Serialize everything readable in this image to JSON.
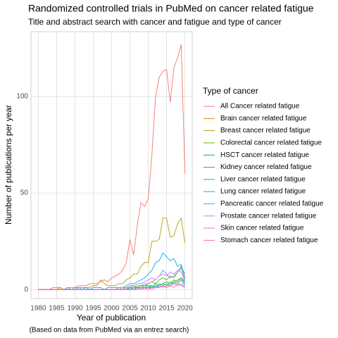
{
  "chart_data": {
    "type": "line",
    "title": "Randomized controlled trials in PubMed on cancer related fatigue",
    "subtitle": "Title and abstract search with cancer and fatigue and type of cancer",
    "x_label": "Year of publication",
    "y_label": "Number of publications per year",
    "caption": "(Based on data from PubMed via an entrez search)",
    "legend_title": "Type of cancer",
    "legend_position": "right",
    "grid": true,
    "x": [
      1980,
      1981,
      1982,
      1983,
      1984,
      1985,
      1986,
      1987,
      1988,
      1989,
      1990,
      1991,
      1992,
      1993,
      1994,
      1995,
      1996,
      1997,
      1998,
      1999,
      2000,
      2001,
      2002,
      2003,
      2004,
      2005,
      2006,
      2007,
      2008,
      2009,
      2010,
      2011,
      2012,
      2013,
      2014,
      2015,
      2016,
      2017,
      2018,
      2019,
      2020
    ],
    "xlim": [
      1978,
      2022
    ],
    "xticks": [
      1980,
      1985,
      1990,
      1995,
      2000,
      2005,
      2010,
      2015,
      2020
    ],
    "ylim": [
      -4.7,
      133.6
    ],
    "yticks": [
      0,
      50,
      100
    ],
    "series": [
      {
        "name": "All Cancer related fatigue",
        "color": "#F8766D",
        "values": [
          0,
          0,
          0,
          0,
          1,
          1,
          1,
          0,
          1,
          1,
          1,
          2,
          2,
          2,
          3,
          3,
          3,
          4,
          5,
          4,
          6,
          7,
          8,
          10,
          14,
          26,
          18,
          33,
          45,
          43,
          47,
          70,
          100,
          110,
          113,
          114,
          97,
          115,
          120,
          127,
          60
        ]
      },
      {
        "name": "Brain cancer related fatigue",
        "color": "#DE8C00",
        "values": [
          0,
          0,
          0,
          0,
          0,
          0,
          0,
          0,
          0,
          0,
          0,
          0,
          0,
          0,
          0,
          0,
          0,
          0,
          0,
          0,
          0,
          0,
          0,
          0,
          0,
          0,
          1,
          0,
          1,
          1,
          1,
          2,
          1,
          2,
          3,
          2,
          4,
          3,
          5,
          6,
          4
        ]
      },
      {
        "name": "Breast cancer related fatigue",
        "color": "#B79F00",
        "values": [
          0,
          0,
          0,
          0,
          0,
          0,
          1,
          0,
          0,
          0,
          1,
          1,
          1,
          1,
          1,
          2,
          2,
          5,
          3,
          2,
          2,
          2,
          3,
          3,
          5,
          6,
          8,
          8,
          12,
          14,
          14,
          25,
          25,
          26,
          37,
          37,
          27,
          28,
          34,
          37,
          24
        ]
      },
      {
        "name": "Colorectal cancer related fatigue",
        "color": "#7CAE00",
        "values": [
          0,
          0,
          0,
          0,
          0,
          0,
          0,
          0,
          0,
          0,
          0,
          0,
          0,
          0,
          0,
          0,
          0,
          0,
          0,
          0,
          0,
          0,
          1,
          0,
          1,
          1,
          2,
          1,
          2,
          2,
          3,
          4,
          3,
          5,
          6,
          5,
          7,
          6,
          9,
          12,
          8
        ]
      },
      {
        "name": "HSCT cancer related fatigue",
        "color": "#00BA38",
        "values": [
          0,
          0,
          0,
          0,
          0,
          0,
          0,
          0,
          0,
          0,
          0,
          0,
          0,
          0,
          0,
          0,
          0,
          0,
          0,
          0,
          0,
          0,
          0,
          0,
          1,
          0,
          1,
          1,
          1,
          2,
          2,
          1,
          3,
          2,
          3,
          4,
          3,
          5,
          4,
          6,
          3
        ]
      },
      {
        "name": "Kidney cancer related fatigue",
        "color": "#00C08B",
        "values": [
          0,
          0,
          0,
          0,
          0,
          0,
          0,
          0,
          0,
          0,
          0,
          0,
          0,
          0,
          0,
          0,
          0,
          0,
          0,
          0,
          0,
          0,
          0,
          0,
          0,
          0,
          0,
          1,
          0,
          1,
          1,
          1,
          2,
          1,
          2,
          1,
          2,
          3,
          2,
          3,
          1
        ]
      },
      {
        "name": "Liver cancer related fatigue",
        "color": "#00BFC4",
        "values": [
          0,
          0,
          0,
          0,
          0,
          0,
          0,
          0,
          0,
          0,
          0,
          0,
          0,
          0,
          0,
          0,
          0,
          0,
          0,
          0,
          0,
          0,
          0,
          0,
          0,
          1,
          0,
          1,
          1,
          1,
          2,
          2,
          1,
          3,
          2,
          3,
          2,
          4,
          3,
          5,
          2
        ]
      },
      {
        "name": "Lung cancer related fatigue",
        "color": "#00B4F0",
        "values": [
          0,
          0,
          0,
          0,
          0,
          0,
          0,
          0,
          1,
          0,
          0,
          1,
          0,
          1,
          0,
          1,
          1,
          1,
          0,
          1,
          1,
          1,
          1,
          1,
          2,
          3,
          3,
          4,
          5,
          6,
          8,
          10,
          14,
          15,
          19,
          17,
          15,
          16,
          12,
          13,
          6
        ]
      },
      {
        "name": "Pancreatic cancer related fatigue",
        "color": "#619CFF",
        "values": [
          0,
          0,
          0,
          0,
          0,
          0,
          0,
          0,
          0,
          0,
          0,
          0,
          0,
          0,
          0,
          0,
          0,
          0,
          0,
          0,
          0,
          0,
          0,
          0,
          1,
          1,
          1,
          2,
          2,
          3,
          3,
          4,
          5,
          7,
          10,
          8,
          6,
          7,
          9,
          11,
          5
        ]
      },
      {
        "name": "Prostate cancer related fatigue",
        "color": "#C77CFF",
        "values": [
          0,
          0,
          0,
          0,
          0,
          0,
          0,
          0,
          0,
          0,
          0,
          0,
          0,
          0,
          0,
          0,
          0,
          0,
          0,
          0,
          0,
          0,
          1,
          1,
          1,
          2,
          2,
          3,
          3,
          4,
          5,
          6,
          5,
          7,
          8,
          7,
          9,
          8,
          10,
          9,
          4
        ]
      },
      {
        "name": "Skin cancer related fatigue",
        "color": "#F564E3",
        "values": [
          0,
          0,
          0,
          0,
          0,
          0,
          0,
          0,
          0,
          0,
          0,
          0,
          0,
          0,
          0,
          0,
          0,
          0,
          0,
          0,
          0,
          0,
          0,
          0,
          0,
          0,
          1,
          0,
          1,
          1,
          0,
          1,
          1,
          2,
          1,
          2,
          2,
          3,
          2,
          3,
          1
        ]
      },
      {
        "name": "Stomach cancer related fatigue",
        "color": "#FF64B0",
        "values": [
          0,
          0,
          0,
          0,
          0,
          0,
          0,
          0,
          0,
          0,
          0,
          0,
          0,
          0,
          0,
          0,
          0,
          0,
          0,
          0,
          0,
          0,
          0,
          0,
          0,
          0,
          0,
          0,
          1,
          0,
          1,
          0,
          1,
          1,
          2,
          1,
          2,
          1,
          3,
          2,
          1
        ]
      }
    ]
  }
}
